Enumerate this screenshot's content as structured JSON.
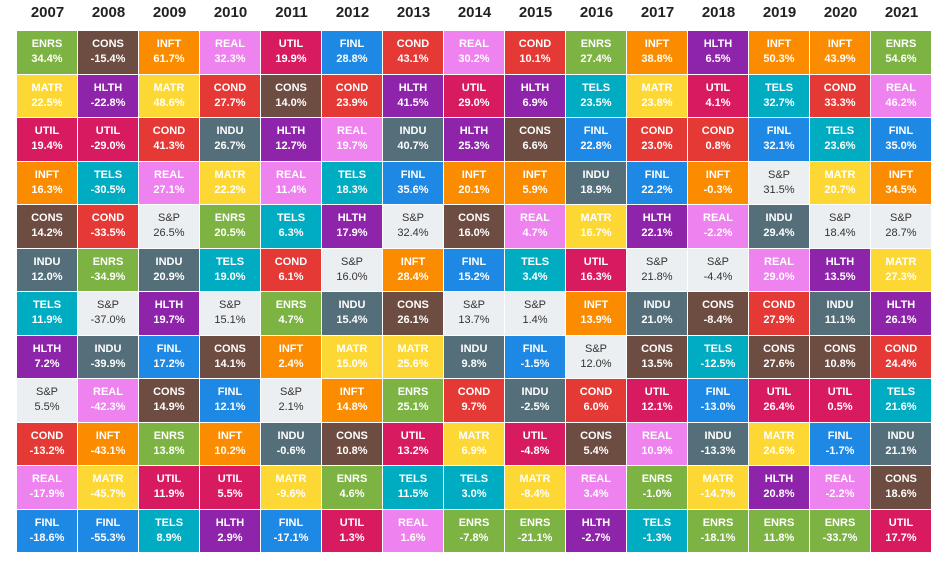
{
  "table": {
    "headers": [
      "2007",
      "2008",
      "2009",
      "2010",
      "2011",
      "2012",
      "2013",
      "2014",
      "2015",
      "2016",
      "2017",
      "2018",
      "2019",
      "2020",
      "2021"
    ],
    "columns": [
      [
        [
          "ENRS",
          "34.4%"
        ],
        [
          "MATR",
          "22.5%"
        ],
        [
          "UTIL",
          "19.4%"
        ],
        [
          "INFT",
          "16.3%"
        ],
        [
          "CONS",
          "14.2%"
        ],
        [
          "INDU",
          "12.0%"
        ],
        [
          "TELS",
          "11.9%"
        ],
        [
          "HLTH",
          "7.2%"
        ],
        [
          "S&P",
          "5.5%"
        ],
        [
          "COND",
          "-13.2%"
        ],
        [
          "REAL",
          "-17.9%"
        ],
        [
          "FINL",
          "-18.6%"
        ]
      ],
      [
        [
          "CONS",
          "-15.4%"
        ],
        [
          "HLTH",
          "-22.8%"
        ],
        [
          "UTIL",
          "-29.0%"
        ],
        [
          "TELS",
          "-30.5%"
        ],
        [
          "COND",
          "-33.5%"
        ],
        [
          "ENRS",
          "-34.9%"
        ],
        [
          "S&P",
          "-37.0%"
        ],
        [
          "INDU",
          "-39.9%"
        ],
        [
          "REAL",
          "-42.3%"
        ],
        [
          "INFT",
          "-43.1%"
        ],
        [
          "MATR",
          "-45.7%"
        ],
        [
          "FINL",
          "-55.3%"
        ]
      ],
      [
        [
          "INFT",
          "61.7%"
        ],
        [
          "MATR",
          "48.6%"
        ],
        [
          "COND",
          "41.3%"
        ],
        [
          "REAL",
          "27.1%"
        ],
        [
          "S&P",
          "26.5%"
        ],
        [
          "INDU",
          "20.9%"
        ],
        [
          "HLTH",
          "19.7%"
        ],
        [
          "FINL",
          "17.2%"
        ],
        [
          "CONS",
          "14.9%"
        ],
        [
          "ENRS",
          "13.8%"
        ],
        [
          "UTIL",
          "11.9%"
        ],
        [
          "TELS",
          "8.9%"
        ]
      ],
      [
        [
          "REAL",
          "32.3%"
        ],
        [
          "COND",
          "27.7%"
        ],
        [
          "INDU",
          "26.7%"
        ],
        [
          "MATR",
          "22.2%"
        ],
        [
          "ENRS",
          "20.5%"
        ],
        [
          "TELS",
          "19.0%"
        ],
        [
          "S&P",
          "15.1%"
        ],
        [
          "CONS",
          "14.1%"
        ],
        [
          "FINL",
          "12.1%"
        ],
        [
          "INFT",
          "10.2%"
        ],
        [
          "UTIL",
          "5.5%"
        ],
        [
          "HLTH",
          "2.9%"
        ]
      ],
      [
        [
          "UTIL",
          "19.9%"
        ],
        [
          "CONS",
          "14.0%"
        ],
        [
          "HLTH",
          "12.7%"
        ],
        [
          "REAL",
          "11.4%"
        ],
        [
          "TELS",
          "6.3%"
        ],
        [
          "COND",
          "6.1%"
        ],
        [
          "ENRS",
          "4.7%"
        ],
        [
          "INFT",
          "2.4%"
        ],
        [
          "S&P",
          "2.1%"
        ],
        [
          "INDU",
          "-0.6%"
        ],
        [
          "MATR",
          "-9.6%"
        ],
        [
          "FINL",
          "-17.1%"
        ]
      ],
      [
        [
          "FINL",
          "28.8%"
        ],
        [
          "COND",
          "23.9%"
        ],
        [
          "REAL",
          "19.7%"
        ],
        [
          "TELS",
          "18.3%"
        ],
        [
          "HLTH",
          "17.9%"
        ],
        [
          "S&P",
          "16.0%"
        ],
        [
          "INDU",
          "15.4%"
        ],
        [
          "MATR",
          "15.0%"
        ],
        [
          "INFT",
          "14.8%"
        ],
        [
          "CONS",
          "10.8%"
        ],
        [
          "ENRS",
          "4.6%"
        ],
        [
          "UTIL",
          "1.3%"
        ]
      ],
      [
        [
          "COND",
          "43.1%"
        ],
        [
          "HLTH",
          "41.5%"
        ],
        [
          "INDU",
          "40.7%"
        ],
        [
          "FINL",
          "35.6%"
        ],
        [
          "S&P",
          "32.4%"
        ],
        [
          "INFT",
          "28.4%"
        ],
        [
          "CONS",
          "26.1%"
        ],
        [
          "MATR",
          "25.6%"
        ],
        [
          "ENRS",
          "25.1%"
        ],
        [
          "UTIL",
          "13.2%"
        ],
        [
          "TELS",
          "11.5%"
        ],
        [
          "REAL",
          "1.6%"
        ]
      ],
      [
        [
          "REAL",
          "30.2%"
        ],
        [
          "UTIL",
          "29.0%"
        ],
        [
          "HLTH",
          "25.3%"
        ],
        [
          "INFT",
          "20.1%"
        ],
        [
          "CONS",
          "16.0%"
        ],
        [
          "FINL",
          "15.2%"
        ],
        [
          "S&P",
          "13.7%"
        ],
        [
          "INDU",
          "9.8%"
        ],
        [
          "COND",
          "9.7%"
        ],
        [
          "MATR",
          "6.9%"
        ],
        [
          "TELS",
          "3.0%"
        ],
        [
          "ENRS",
          "-7.8%"
        ]
      ],
      [
        [
          "COND",
          "10.1%"
        ],
        [
          "HLTH",
          "6.9%"
        ],
        [
          "CONS",
          "6.6%"
        ],
        [
          "INFT",
          "5.9%"
        ],
        [
          "REAL",
          "4.7%"
        ],
        [
          "TELS",
          "3.4%"
        ],
        [
          "S&P",
          "1.4%"
        ],
        [
          "FINL",
          "-1.5%"
        ],
        [
          "INDU",
          "-2.5%"
        ],
        [
          "UTIL",
          "-4.8%"
        ],
        [
          "MATR",
          "-8.4%"
        ],
        [
          "ENRS",
          "-21.1%"
        ]
      ],
      [
        [
          "ENRS",
          "27.4%"
        ],
        [
          "TELS",
          "23.5%"
        ],
        [
          "FINL",
          "22.8%"
        ],
        [
          "INDU",
          "18.9%"
        ],
        [
          "MATR",
          "16.7%"
        ],
        [
          "UTIL",
          "16.3%"
        ],
        [
          "INFT",
          "13.9%"
        ],
        [
          "S&P",
          "12.0%"
        ],
        [
          "COND",
          "6.0%"
        ],
        [
          "CONS",
          "5.4%"
        ],
        [
          "REAL",
          "3.4%"
        ],
        [
          "HLTH",
          "-2.7%"
        ]
      ],
      [
        [
          "INFT",
          "38.8%"
        ],
        [
          "MATR",
          "23.8%"
        ],
        [
          "COND",
          "23.0%"
        ],
        [
          "FINL",
          "22.2%"
        ],
        [
          "HLTH",
          "22.1%"
        ],
        [
          "S&P",
          "21.8%"
        ],
        [
          "INDU",
          "21.0%"
        ],
        [
          "CONS",
          "13.5%"
        ],
        [
          "UTIL",
          "12.1%"
        ],
        [
          "REAL",
          "10.9%"
        ],
        [
          "ENRS",
          "-1.0%"
        ],
        [
          "TELS",
          "-1.3%"
        ]
      ],
      [
        [
          "HLTH",
          "6.5%"
        ],
        [
          "UTIL",
          "4.1%"
        ],
        [
          "COND",
          "0.8%"
        ],
        [
          "INFT",
          "-0.3%"
        ],
        [
          "REAL",
          "-2.2%"
        ],
        [
          "S&P",
          "-4.4%"
        ],
        [
          "CONS",
          "-8.4%"
        ],
        [
          "TELS",
          "-12.5%"
        ],
        [
          "FINL",
          "-13.0%"
        ],
        [
          "INDU",
          "-13.3%"
        ],
        [
          "MATR",
          "-14.7%"
        ],
        [
          "ENRS",
          "-18.1%"
        ]
      ],
      [
        [
          "INFT",
          "50.3%"
        ],
        [
          "TELS",
          "32.7%"
        ],
        [
          "FINL",
          "32.1%"
        ],
        [
          "S&P",
          "31.5%"
        ],
        [
          "INDU",
          "29.4%"
        ],
        [
          "REAL",
          "29.0%"
        ],
        [
          "COND",
          "27.9%"
        ],
        [
          "CONS",
          "27.6%"
        ],
        [
          "UTIL",
          "26.4%"
        ],
        [
          "MATR",
          "24.6%"
        ],
        [
          "HLTH",
          "20.8%"
        ],
        [
          "ENRS",
          "11.8%"
        ]
      ],
      [
        [
          "INFT",
          "43.9%"
        ],
        [
          "COND",
          "33.3%"
        ],
        [
          "TELS",
          "23.6%"
        ],
        [
          "MATR",
          "20.7%"
        ],
        [
          "S&P",
          "18.4%"
        ],
        [
          "HLTH",
          "13.5%"
        ],
        [
          "INDU",
          "11.1%"
        ],
        [
          "CONS",
          "10.8%"
        ],
        [
          "UTIL",
          "0.5%"
        ],
        [
          "FINL",
          "-1.7%"
        ],
        [
          "REAL",
          "-2.2%"
        ],
        [
          "ENRS",
          "-33.7%"
        ]
      ],
      [
        [
          "ENRS",
          "54.6%"
        ],
        [
          "REAL",
          "46.2%"
        ],
        [
          "FINL",
          "35.0%"
        ],
        [
          "INFT",
          "34.5%"
        ],
        [
          "S&P",
          "28.7%"
        ],
        [
          "MATR",
          "27.3%"
        ],
        [
          "HLTH",
          "26.1%"
        ],
        [
          "COND",
          "24.4%"
        ],
        [
          "TELS",
          "21.6%"
        ],
        [
          "INDU",
          "21.1%"
        ],
        [
          "CONS",
          "18.6%"
        ],
        [
          "UTIL",
          "17.7%"
        ]
      ]
    ]
  },
  "colors": {
    "ENRS": "#7cb342",
    "CONS": "#6d4c41",
    "INFT": "#fb8c00",
    "REAL": "#ee82ee",
    "UTIL": "#d81b60",
    "FINL": "#1e88e5",
    "COND": "#e53935",
    "MATR": "#fdd835",
    "HLTH": "#8e24aa",
    "INDU": "#546e7a",
    "TELS": "#00acc1",
    "S&P": "#eceff1"
  }
}
